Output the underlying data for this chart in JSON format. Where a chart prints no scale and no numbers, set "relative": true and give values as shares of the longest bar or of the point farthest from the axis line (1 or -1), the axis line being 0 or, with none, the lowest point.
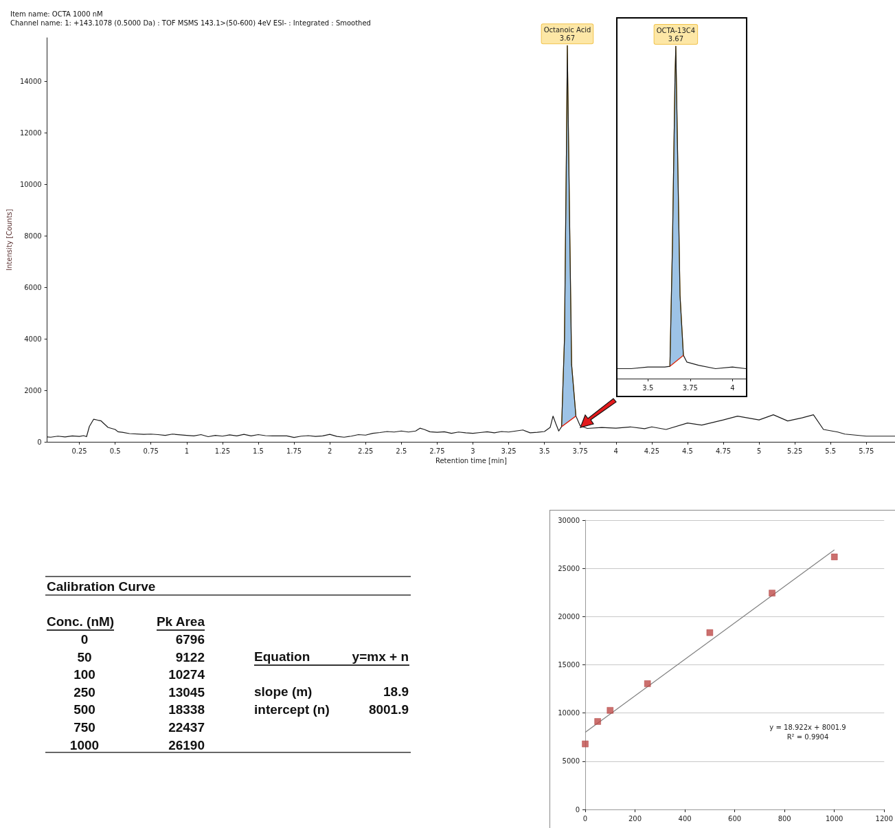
{
  "chart_data": [
    {
      "type": "line",
      "title": "Item name: OCTA 1000 nM",
      "subtitle": "Channel name: 1: +143.1078 (0.5000 Da) : TOF MSMS 143.1>(50-600) 4eV ESI- : Integrated : Smoothed",
      "xlabel": "Retention time [min]",
      "ylabel": "Intensity [Counts]",
      "xlim": [
        0.025,
        5.95
      ],
      "ylim": [
        0,
        15700
      ],
      "xticks": [
        0.25,
        0.5,
        0.75,
        1,
        1.25,
        1.5,
        1.75,
        2,
        2.25,
        2.5,
        2.75,
        3,
        3.25,
        3.5,
        3.75,
        4,
        4.25,
        4.5,
        4.75,
        5,
        5.25,
        5.5,
        5.75
      ],
      "yticks": [
        0,
        2000,
        4000,
        6000,
        8000,
        10000,
        12000,
        14000
      ],
      "grid": false,
      "marker": "none",
      "line_style": "solid",
      "annotations": [
        {
          "text": "Octanoic Acid\n3.67",
          "x": 3.66,
          "y": 15400
        }
      ],
      "series": [
        {
          "type": "line",
          "color": "#1a1a1a",
          "x": [
            0.025,
            0.05,
            0.1,
            0.15,
            0.2,
            0.25,
            0.28,
            0.3,
            0.32,
            0.35,
            0.38,
            0.4,
            0.45,
            0.5,
            0.52,
            0.55,
            0.6,
            0.7,
            0.75,
            0.8,
            0.85,
            0.9,
            1.0,
            1.05,
            1.1,
            1.15,
            1.2,
            1.25,
            1.3,
            1.35,
            1.4,
            1.45,
            1.5,
            1.55,
            1.6,
            1.7,
            1.75,
            1.8,
            1.85,
            1.9,
            1.95,
            2.0,
            2.05,
            2.1,
            2.15,
            2.2,
            2.25,
            2.3,
            2.35,
            2.4,
            2.45,
            2.5,
            2.55,
            2.6,
            2.63,
            2.66,
            2.7,
            2.75,
            2.8,
            2.85,
            2.9,
            2.95,
            3.0,
            3.05,
            3.1,
            3.15,
            3.2,
            3.25,
            3.3,
            3.35,
            3.4,
            3.45,
            3.5,
            3.54,
            3.56,
            3.58,
            3.6,
            3.62,
            3.64,
            3.655,
            3.66,
            3.675,
            3.69,
            3.72,
            3.75,
            3.8,
            3.9,
            4.0,
            4.1,
            4.2,
            4.25,
            4.35,
            4.5,
            4.6,
            4.75,
            4.85,
            5.0,
            5.1,
            5.2,
            5.3,
            5.38,
            5.45,
            5.55,
            5.6,
            5.75,
            5.95
          ],
          "values": [
            190,
            180,
            220,
            190,
            230,
            210,
            240,
            200,
            600,
            880,
            840,
            820,
            560,
            480,
            390,
            370,
            320,
            290,
            300,
            280,
            250,
            300,
            250,
            230,
            280,
            200,
            250,
            220,
            270,
            230,
            290,
            230,
            280,
            240,
            230,
            230,
            170,
            220,
            240,
            210,
            230,
            290,
            210,
            180,
            220,
            280,
            260,
            330,
            360,
            400,
            380,
            420,
            380,
            420,
            530,
            480,
            390,
            370,
            390,
            330,
            380,
            350,
            330,
            360,
            390,
            350,
            400,
            380,
            420,
            460,
            350,
            370,
            400,
            560,
            1000,
            700,
            420,
            590,
            4000,
            12000,
            15400,
            9000,
            3000,
            1000,
            620,
            520,
            560,
            530,
            580,
            510,
            580,
            480,
            730,
            650,
            850,
            1000,
            850,
            1050,
            810,
            930,
            1050,
            480,
            380,
            300,
            220,
            220
          ]
        },
        {
          "type": "area",
          "color": "#9dc3e6",
          "x": [
            3.62,
            3.64,
            3.655,
            3.66,
            3.675,
            3.69,
            3.72
          ],
          "values": [
            590,
            4000,
            12000,
            15400,
            9000,
            3000,
            1000
          ]
        },
        {
          "type": "line",
          "color": "#e0161b",
          "x": [
            3.62,
            3.72
          ],
          "values": [
            590,
            1000
          ]
        }
      ]
    },
    {
      "type": "line",
      "relative": true,
      "xlim": [
        3.32,
        4.08
      ],
      "xticks": [
        3.5,
        3.75,
        4
      ],
      "tick_labels": "x",
      "grid": false,
      "marker": "none",
      "line_style": "solid",
      "annotations": [
        {
          "text": "OCTA-13C4\n3.67",
          "x": 3.665,
          "y": 1
        }
      ],
      "series": [
        {
          "type": "line",
          "color": "#1a1a1a",
          "x": [
            3.32,
            3.4,
            3.5,
            3.6,
            3.63,
            3.645,
            3.66,
            3.665,
            3.675,
            3.69,
            3.71,
            3.73,
            3.8,
            3.9,
            4.0,
            4.08
          ],
          "values": [
            0.03,
            0.03,
            0.035,
            0.035,
            0.037,
            0.4,
            0.9,
            1,
            0.7,
            0.25,
            0.07,
            0.05,
            0.04,
            0.03,
            0.035,
            0.03
          ]
        },
        {
          "type": "area",
          "color": "#9dc3e6",
          "x": [
            3.63,
            3.645,
            3.66,
            3.665,
            3.675,
            3.69,
            3.71
          ],
          "values": [
            0.037,
            0.4,
            0.9,
            1,
            0.7,
            0.25,
            0.07
          ]
        },
        {
          "type": "line",
          "color": "#e0161b",
          "x": [
            3.63,
            3.71
          ],
          "values": [
            0.037,
            0.07
          ]
        }
      ]
    },
    {
      "type": "other",
      "title": "Calibration Curve",
      "annotations": [
        "Conc. (nM)",
        "Pk Area",
        "0",
        "6796",
        "50",
        "9122",
        "100",
        "10274",
        "250",
        "13045",
        "500",
        "18338",
        "750",
        "22437",
        "1000",
        "26190",
        "Equation",
        "y=mx + n",
        "slope (m)",
        "18.9",
        "intercept (n)",
        "8001.9"
      ]
    },
    {
      "type": "scatter",
      "xlim": [
        0,
        1200
      ],
      "ylim": [
        0,
        30000
      ],
      "xticks": [
        0,
        200,
        400,
        600,
        800,
        1000,
        1200
      ],
      "yticks": [
        0,
        5000,
        10000,
        15000,
        20000,
        25000,
        30000
      ],
      "grid": "y",
      "marker": "square",
      "annotations": [
        "y = 18.922x + 8001.9",
        "R² = 0.9904"
      ],
      "series": [
        {
          "type": "scatter",
          "color": "#be4b48",
          "x": [
            0,
            50,
            100,
            250,
            500,
            750,
            1000
          ],
          "values": [
            6796,
            9122,
            10274,
            13045,
            18338,
            22437,
            26190
          ]
        },
        {
          "type": "line",
          "color": "#7f7f7f",
          "marker": "none",
          "x": [
            0,
            1000
          ],
          "values": [
            8001.9,
            26923.9
          ]
        }
      ]
    }
  ]
}
